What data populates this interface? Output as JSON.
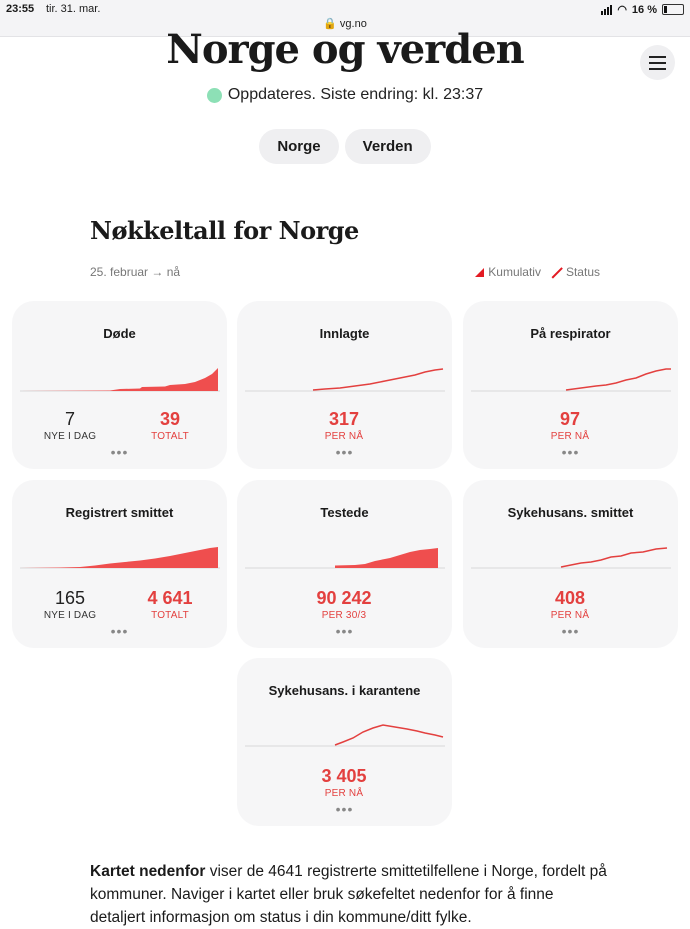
{
  "statusbar": {
    "time": "23:55",
    "date": "tir. 31. mar.",
    "url": "vg.no",
    "battery": "16 %"
  },
  "header": {
    "title": "Norge og verden",
    "update_text": "Oppdateres. Siste endring: kl. 23:37"
  },
  "tabs": [
    {
      "label": "Norge"
    },
    {
      "label": "Verden"
    }
  ],
  "section": {
    "title": "Nøkkeltall for Norge",
    "period": "25. februar → nå",
    "legend_cumulative": "Kumulativ",
    "legend_status": "Status"
  },
  "colors": {
    "accent": "#e3403f",
    "update_dot": "#8de0b6",
    "card_bg": "#f6f6f7"
  },
  "cards": [
    {
      "title": "Døde",
      "chart": "area",
      "stat_left": {
        "value": "7",
        "label": "NYE I DAG"
      },
      "stat_right": {
        "value": "39",
        "label": "TOTALT"
      },
      "more": "•••"
    },
    {
      "title": "Innlagte",
      "chart": "line",
      "stat": {
        "value": "317",
        "label": "PER NÅ"
      },
      "more": "•••"
    },
    {
      "title": "På respirator",
      "chart": "line",
      "stat": {
        "value": "97",
        "label": "PER NÅ"
      },
      "more": "•••"
    },
    {
      "title": "Registrert smittet",
      "chart": "area",
      "stat_left": {
        "value": "165",
        "label": "NYE I DAG"
      },
      "stat_right": {
        "value": "4 641",
        "label": "TOTALT"
      },
      "more": "•••"
    },
    {
      "title": "Testede",
      "chart": "area",
      "stat": {
        "value": "90 242",
        "label": "PER 30/3"
      },
      "more": "•••"
    },
    {
      "title": "Sykehusans. smittet",
      "chart": "line",
      "stat": {
        "value": "408",
        "label": "PER NÅ"
      },
      "more": "•••"
    },
    {
      "title": "Sykehusans. i karantene",
      "chart": "line",
      "stat": {
        "value": "3 405",
        "label": "PER NÅ"
      },
      "more": "•••"
    }
  ],
  "body": {
    "bold_lead": "Kartet nedenfor",
    "text": " viser de 4641 registrerte smittetilfellene i Norge, fordelt på kommuner. Naviger i kartet eller bruk søkefeltet nedenfor for å finne detaljert informasjon om status i din kommune/ditt fylke."
  }
}
